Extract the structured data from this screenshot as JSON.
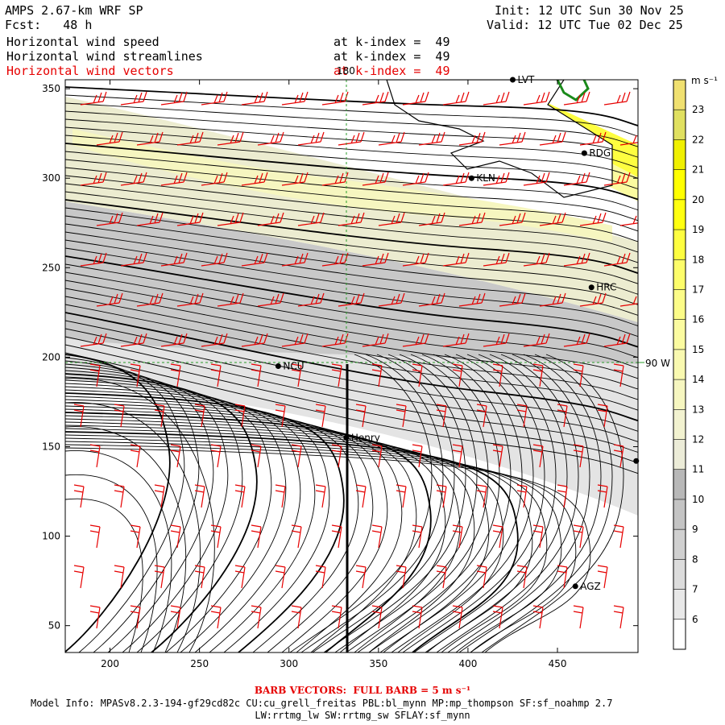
{
  "header": {
    "model": "AMPS 2.67-km WRF SP",
    "forecast": "Fcst:   48 h",
    "init": "Init: 12 UTC Sun 30 Nov 25",
    "valid": "Valid: 12 UTC Tue 02 Dec 25",
    "fields": [
      {
        "name": "Horizontal wind speed",
        "level": "at k-index =  49"
      },
      {
        "name": "Horizontal wind streamlines",
        "level": "at k-index =  49"
      },
      {
        "name": "Horizontal wind vectors",
        "level": "at k-index =  49"
      }
    ]
  },
  "colors": {
    "highlight_text": "#e60000",
    "barb": "#e60000",
    "gridline": "#2a9d2a",
    "coast_green": "#1a8a1a",
    "land": "#ffffff"
  },
  "chart_data": {
    "type": "heatmap",
    "title": "Horizontal wind speed / streamlines / vectors at k-index = 49",
    "x_ticks": [
      200,
      250,
      300,
      350,
      400,
      450
    ],
    "y_ticks": [
      50,
      100,
      150,
      200,
      250,
      300,
      350
    ],
    "xlim": [
      175,
      495
    ],
    "ylim": [
      35,
      355
    ],
    "colorbar": {
      "unit": "m s⁻¹",
      "levels": [
        6,
        7,
        8,
        9,
        10,
        11,
        12,
        13,
        14,
        15,
        16,
        17,
        18,
        19,
        20,
        21,
        22,
        23
      ],
      "colors": [
        "#ffffff",
        "#e8e8e8",
        "#dcdcdc",
        "#d0d0d0",
        "#c4c4c4",
        "#b8b8b8",
        "#ececd8",
        "#f2f2d0",
        "#f6f6c0",
        "#f9f9b0",
        "#fbfba0",
        "#fcfc88",
        "#fdfd6a",
        "#fefe40",
        "#ffff10",
        "#ffff00",
        "#f0f000",
        "#e0e060",
        "#f0e070"
      ]
    },
    "grid_labels": [
      {
        "text": "180",
        "role": "meridian"
      },
      {
        "text": "90 W",
        "role": "meridian"
      }
    ],
    "stations": [
      {
        "id": "LVT",
        "x": 425,
        "y": 355
      },
      {
        "id": "RDG",
        "x": 465,
        "y": 314
      },
      {
        "id": "KLN",
        "x": 402,
        "y": 300
      },
      {
        "id": "HRC",
        "x": 469,
        "y": 239
      },
      {
        "id": "NCU",
        "x": 294,
        "y": 195
      },
      {
        "id": "Henry",
        "x": 332,
        "y": 155
      },
      {
        "id": "AGZ",
        "x": 460,
        "y": 72
      },
      {
        "id": "",
        "x": 494,
        "y": 142
      }
    ]
  },
  "footer": {
    "barb_note": "BARB VECTORS:  FULL BARB = 5 m s⁻¹",
    "model_info_1": "Model Info: MPASv8.2.3-194-gf29cd82c CU:cu_grell_freitas PBL:bl_mynn MP:mp_thompson SF:sf_noahmp 2.7",
    "model_info_2": "LW:rrtmg_lw SW:rrtmg_sw SFLAY:sf_mynn"
  }
}
